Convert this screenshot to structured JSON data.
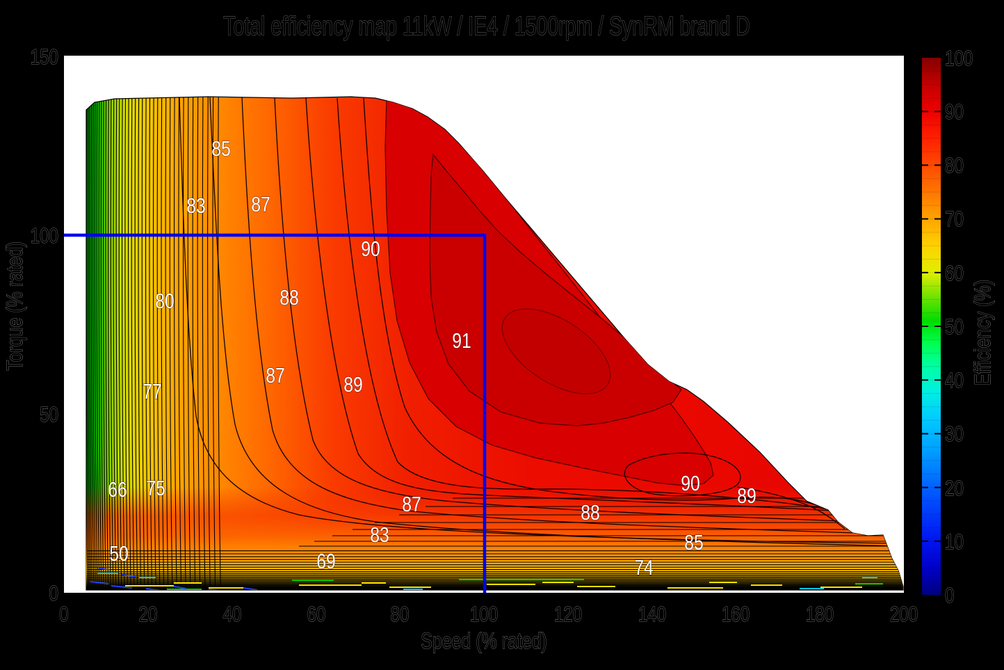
{
  "figure": {
    "title": "Total efficiency map 11kW / IE4 / 1500rpm / SynRM brand D",
    "background_color": "#000000",
    "rated_box_color": "#0000F0"
  },
  "axes": {
    "xlabel": "Speed (% rated)",
    "ylabel": "Torque (% rated)",
    "x_ticks": [
      "0",
      "20",
      "40",
      "60",
      "80",
      "100",
      "120",
      "140",
      "160",
      "180",
      "200"
    ],
    "y_ticks": [
      "150",
      "100",
      "50",
      "0"
    ]
  },
  "colorbar": {
    "label": "Efficiency (%)",
    "ticks": [
      "100",
      "90",
      "80",
      "70",
      "60",
      "50",
      "40",
      "30",
      "20",
      "10",
      "0"
    ]
  },
  "contour_labels": [
    {
      "t": "85"
    },
    {
      "t": "83"
    },
    {
      "t": "87"
    },
    {
      "t": "90"
    },
    {
      "t": "88"
    },
    {
      "t": "80"
    },
    {
      "t": "91"
    },
    {
      "t": "87"
    },
    {
      "t": "89"
    },
    {
      "t": "77"
    },
    {
      "t": "66"
    },
    {
      "t": "75"
    },
    {
      "t": "90"
    },
    {
      "t": "89"
    },
    {
      "t": "87"
    },
    {
      "t": "88"
    },
    {
      "t": "83"
    },
    {
      "t": "85"
    },
    {
      "t": "50"
    },
    {
      "t": "69"
    },
    {
      "t": "74"
    }
  ],
  "chart_data": {
    "type": "heatmap",
    "subtype": "filled contour efficiency map (jet colormap)",
    "title": "Total efficiency map 11kW / IE4 / 1500rpm / SynRM brand D",
    "xlabel": "Speed (% rated)",
    "ylabel": "Torque (% rated)",
    "xlim": [
      0,
      200
    ],
    "ylim": [
      0,
      150
    ],
    "grid": false,
    "colorbar": {
      "label": "Efficiency (%)",
      "range": [
        0,
        100
      ],
      "ticks": [
        0,
        10,
        20,
        30,
        40,
        50,
        60,
        70,
        80,
        90,
        100
      ],
      "colormap": "jet"
    },
    "rated_operating_box": {
      "speed_pct_range": [
        0,
        100
      ],
      "torque_pct_range": [
        0,
        100
      ],
      "outline_color": "#0000F0"
    },
    "envelope": {
      "max_torque_pct_low_speed": 138,
      "min_speed_pct": 5,
      "max_speed_pct": 200,
      "description": "constant-torque plateau to ~85% speed, then falling torque capability down to ~5% torque at 200% speed"
    },
    "peak_efficiency_region": {
      "efficiency_min": 91,
      "speed_pct_range": [
        85,
        135
      ],
      "torque_pct_range": [
        45,
        95
      ]
    },
    "labeled_contours": [
      {
        "efficiency": 85,
        "speed_pct": 37,
        "torque_pct": 124
      },
      {
        "efficiency": 83,
        "speed_pct": 31,
        "torque_pct": 108
      },
      {
        "efficiency": 87,
        "speed_pct": 47,
        "torque_pct": 109
      },
      {
        "efficiency": 90,
        "speed_pct": 73,
        "torque_pct": 96
      },
      {
        "efficiency": 88,
        "speed_pct": 54,
        "torque_pct": 83
      },
      {
        "efficiency": 80,
        "speed_pct": 24,
        "torque_pct": 82
      },
      {
        "efficiency": 91,
        "speed_pct": 95,
        "torque_pct": 71
      },
      {
        "efficiency": 87,
        "speed_pct": 50,
        "torque_pct": 61
      },
      {
        "efficiency": 89,
        "speed_pct": 69,
        "torque_pct": 58
      },
      {
        "efficiency": 77,
        "speed_pct": 21,
        "torque_pct": 56
      },
      {
        "efficiency": 66,
        "speed_pct": 13,
        "torque_pct": 29
      },
      {
        "efficiency": 75,
        "speed_pct": 22,
        "torque_pct": 29
      },
      {
        "efficiency": 90,
        "speed_pct": 149,
        "torque_pct": 31
      },
      {
        "efficiency": 89,
        "speed_pct": 163,
        "torque_pct": 27
      },
      {
        "efficiency": 87,
        "speed_pct": 83,
        "torque_pct": 25
      },
      {
        "efficiency": 88,
        "speed_pct": 125,
        "torque_pct": 23
      },
      {
        "efficiency": 83,
        "speed_pct": 75,
        "torque_pct": 16
      },
      {
        "efficiency": 85,
        "speed_pct": 150,
        "torque_pct": 14
      },
      {
        "efficiency": 50,
        "speed_pct": 13,
        "torque_pct": 11
      },
      {
        "efficiency": 69,
        "speed_pct": 62,
        "torque_pct": 9
      },
      {
        "efficiency": 74,
        "speed_pct": 138,
        "torque_pct": 7
      }
    ]
  }
}
